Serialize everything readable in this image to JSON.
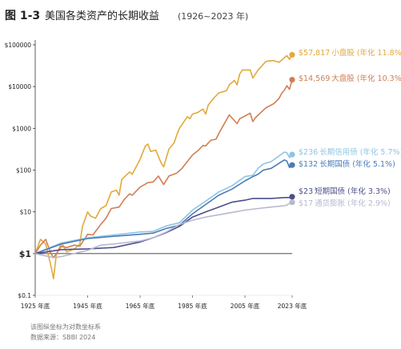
{
  "header": {
    "figure_label": "图 1-3",
    "title_main": "美国各类资产的长期收益",
    "title_range": "(1926~2023 年)"
  },
  "footer": {
    "note": "该图纵坐标为对数坐标系",
    "source": "数据来源：SBBI 2024"
  },
  "colors": {
    "small_cap": "#e2a93b",
    "large_cap": "#cf7f55",
    "corp_bond": "#8ec5e3",
    "gov_bond": "#4b7bb8",
    "short_gov": "#4e4e8c",
    "inflation": "#b7b9cf",
    "axis": "#333333",
    "grid": "#d9d9d9",
    "text": "#222222",
    "muted": "#777777"
  },
  "chart_data": {
    "type": "line",
    "y_scale": "log",
    "ylim": [
      0.1,
      100000
    ],
    "xlim": [
      1925,
      2023
    ],
    "y_ticks": [
      {
        "value": 100000,
        "label": "$100000"
      },
      {
        "value": 10000,
        "label": "$10000"
      },
      {
        "value": 1000,
        "label": "$1000"
      },
      {
        "value": 100,
        "label": "$100"
      },
      {
        "value": 10,
        "label": "$10"
      },
      {
        "value": 1,
        "label": "$1"
      },
      {
        "value": 0.1,
        "label": "$0.1"
      }
    ],
    "x_ticks": [
      {
        "value": 1925,
        "label": "1925 年底"
      },
      {
        "value": 1945,
        "label": "1945 年底"
      },
      {
        "value": 1965,
        "label": "1965 年底"
      },
      {
        "value": 1985,
        "label": "1985 年底"
      },
      {
        "value": 2005,
        "label": "2005 年底"
      },
      {
        "value": 2023,
        "label": "2023 年底"
      }
    ],
    "grid": false,
    "series": [
      {
        "name": "小盘股",
        "color_key": "small_cap",
        "end_value": "$57,817",
        "label": "小盘股 (年化 11.8%)",
        "points": [
          [
            1925,
            1
          ],
          [
            1927,
            2.2
          ],
          [
            1929,
            1.7
          ],
          [
            1931,
            0.5
          ],
          [
            1932,
            0.25
          ],
          [
            1933,
            0.9
          ],
          [
            1935,
            1.8
          ],
          [
            1937,
            1.1
          ],
          [
            1940,
            1.3
          ],
          [
            1942,
            1.7
          ],
          [
            1943,
            4.5
          ],
          [
            1945,
            10
          ],
          [
            1946,
            8
          ],
          [
            1948,
            7
          ],
          [
            1950,
            12
          ],
          [
            1952,
            14
          ],
          [
            1954,
            30
          ],
          [
            1956,
            33
          ],
          [
            1957,
            25
          ],
          [
            1958,
            60
          ],
          [
            1961,
            90
          ],
          [
            1962,
            80
          ],
          [
            1965,
            180
          ],
          [
            1967,
            380
          ],
          [
            1968,
            420
          ],
          [
            1969,
            280
          ],
          [
            1971,
            300
          ],
          [
            1973,
            150
          ],
          [
            1974,
            120
          ],
          [
            1976,
            320
          ],
          [
            1978,
            450
          ],
          [
            1979,
            700
          ],
          [
            1980,
            1000
          ],
          [
            1983,
            1900
          ],
          [
            1984,
            1700
          ],
          [
            1985,
            2200
          ],
          [
            1987,
            2400
          ],
          [
            1989,
            2900
          ],
          [
            1990,
            2200
          ],
          [
            1991,
            3600
          ],
          [
            1993,
            5200
          ],
          [
            1995,
            7000
          ],
          [
            1998,
            8000
          ],
          [
            1999,
            11000
          ],
          [
            2001,
            14000
          ],
          [
            2002,
            11000
          ],
          [
            2003,
            20000
          ],
          [
            2004,
            25000
          ],
          [
            2007,
            25000
          ],
          [
            2008,
            16000
          ],
          [
            2010,
            25000
          ],
          [
            2013,
            40000
          ],
          [
            2014,
            41000
          ],
          [
            2016,
            42000
          ],
          [
            2018,
            38000
          ],
          [
            2020,
            49000
          ],
          [
            2021,
            55000
          ],
          [
            2022,
            45000
          ],
          [
            2023,
            57817
          ]
        ]
      },
      {
        "name": "大盘股",
        "color_key": "large_cap",
        "end_value": "$14,569",
        "label": "大盘股 (年化 10.3%)",
        "points": [
          [
            1925,
            1
          ],
          [
            1927,
            1.6
          ],
          [
            1929,
            2.2
          ],
          [
            1931,
            1.0
          ],
          [
            1932,
            0.8
          ],
          [
            1935,
            1.5
          ],
          [
            1937,
            1.4
          ],
          [
            1940,
            1.6
          ],
          [
            1942,
            1.5
          ],
          [
            1945,
            2.9
          ],
          [
            1947,
            2.8
          ],
          [
            1950,
            5
          ],
          [
            1952,
            7
          ],
          [
            1954,
            12
          ],
          [
            1957,
            13
          ],
          [
            1959,
            20
          ],
          [
            1961,
            27
          ],
          [
            1962,
            25
          ],
          [
            1965,
            39
          ],
          [
            1968,
            50
          ],
          [
            1970,
            52
          ],
          [
            1972,
            72
          ],
          [
            1974,
            45
          ],
          [
            1976,
            72
          ],
          [
            1979,
            85
          ],
          [
            1981,
            110
          ],
          [
            1983,
            160
          ],
          [
            1985,
            230
          ],
          [
            1987,
            290
          ],
          [
            1989,
            390
          ],
          [
            1990,
            380
          ],
          [
            1992,
            520
          ],
          [
            1994,
            550
          ],
          [
            1995,
            750
          ],
          [
            1997,
            1250
          ],
          [
            1999,
            2100
          ],
          [
            2002,
            1300
          ],
          [
            2003,
            1700
          ],
          [
            2007,
            2300
          ],
          [
            2008,
            1450
          ],
          [
            2009,
            1800
          ],
          [
            2013,
            3100
          ],
          [
            2016,
            3900
          ],
          [
            2018,
            5200
          ],
          [
            2019,
            6900
          ],
          [
            2020,
            8100
          ],
          [
            2021,
            10500
          ],
          [
            2022,
            8600
          ],
          [
            2023,
            14569
          ]
        ]
      },
      {
        "name": "长期信用债",
        "color_key": "corp_bond",
        "end_value": "$236",
        "label": "长期信用债 (年化 5.7%)",
        "points": [
          [
            1925,
            1
          ],
          [
            1935,
            1.8
          ],
          [
            1945,
            2.4
          ],
          [
            1955,
            2.8
          ],
          [
            1965,
            3.3
          ],
          [
            1970,
            3.4
          ],
          [
            1975,
            4.6
          ],
          [
            1980,
            5.5
          ],
          [
            1985,
            11
          ],
          [
            1990,
            18
          ],
          [
            1995,
            30
          ],
          [
            2000,
            42
          ],
          [
            2005,
            70
          ],
          [
            2008,
            75
          ],
          [
            2010,
            110
          ],
          [
            2012,
            140
          ],
          [
            2015,
            160
          ],
          [
            2020,
            270
          ],
          [
            2021,
            260
          ],
          [
            2022,
            200
          ],
          [
            2023,
            236
          ]
        ]
      },
      {
        "name": "长期国债",
        "color_key": "gov_bond",
        "end_value": "$132",
        "label": "长期国债 (年化 5.1%)",
        "points": [
          [
            1925,
            1
          ],
          [
            1935,
            1.7
          ],
          [
            1945,
            2.3
          ],
          [
            1955,
            2.6
          ],
          [
            1965,
            2.9
          ],
          [
            1970,
            3.1
          ],
          [
            1975,
            4.0
          ],
          [
            1980,
            4.8
          ],
          [
            1985,
            9
          ],
          [
            1990,
            15
          ],
          [
            1995,
            25
          ],
          [
            2000,
            35
          ],
          [
            2005,
            55
          ],
          [
            2008,
            70
          ],
          [
            2010,
            80
          ],
          [
            2012,
            100
          ],
          [
            2015,
            110
          ],
          [
            2020,
            175
          ],
          [
            2021,
            165
          ],
          [
            2022,
            115
          ],
          [
            2023,
            132
          ]
        ]
      },
      {
        "name": "短期国债",
        "color_key": "short_gov",
        "end_value": "$23",
        "label": "短期国债 (年化 3.3%)",
        "points": [
          [
            1925,
            1
          ],
          [
            1935,
            1.25
          ],
          [
            1945,
            1.3
          ],
          [
            1955,
            1.4
          ],
          [
            1965,
            1.9
          ],
          [
            1970,
            2.4
          ],
          [
            1975,
            3.2
          ],
          [
            1980,
            4.5
          ],
          [
            1985,
            7.5
          ],
          [
            1990,
            10
          ],
          [
            1995,
            13
          ],
          [
            2000,
            17
          ],
          [
            2005,
            19
          ],
          [
            2008,
            21
          ],
          [
            2010,
            21
          ],
          [
            2015,
            21
          ],
          [
            2020,
            22
          ],
          [
            2022,
            22
          ],
          [
            2023,
            23
          ]
        ]
      },
      {
        "name": "通货膨胀",
        "color_key": "inflation",
        "end_value": "$17",
        "label": "通货膨胀 (年化 2.9%)",
        "points": [
          [
            1925,
            1
          ],
          [
            1932,
            0.8
          ],
          [
            1935,
            0.85
          ],
          [
            1945,
            1.2
          ],
          [
            1950,
            1.6
          ],
          [
            1955,
            1.7
          ],
          [
            1965,
            2.0
          ],
          [
            1970,
            2.4
          ],
          [
            1975,
            3.3
          ],
          [
            1980,
            5.0
          ],
          [
            1985,
            6.3
          ],
          [
            1990,
            7.5
          ],
          [
            1995,
            8.5
          ],
          [
            2000,
            9.7
          ],
          [
            2005,
            11
          ],
          [
            2010,
            12
          ],
          [
            2015,
            13
          ],
          [
            2020,
            14
          ],
          [
            2021,
            14.5
          ],
          [
            2022,
            16
          ],
          [
            2023,
            17
          ]
        ]
      }
    ]
  }
}
